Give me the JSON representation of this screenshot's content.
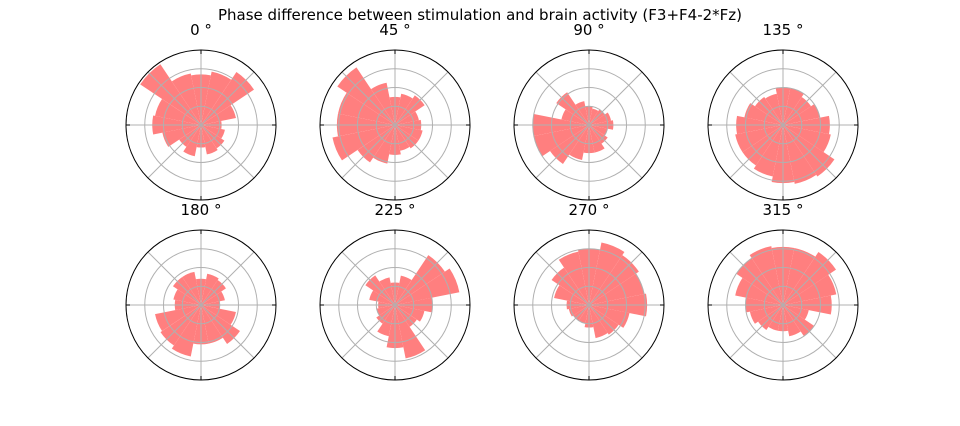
{
  "title": "Phase difference between stimulation and brain activity (F3+F4-2*Fz)",
  "chart_data": {
    "type": "polar-bar",
    "title": "Phase difference between stimulation and brain activity (F3+F4-2*Fz)",
    "bin_count": 16,
    "bin_centers_deg": [
      0,
      22.5,
      45,
      67.5,
      90,
      112.5,
      135,
      157.5,
      180,
      202.5,
      225,
      247.5,
      270,
      292.5,
      315,
      337.5
    ],
    "radial_grid_levels": [
      1,
      2,
      3,
      4
    ],
    "rlim": [
      0,
      4
    ],
    "grid": true,
    "bar_color": "#ff7f7f",
    "grid_color": "#b0b0b0",
    "panels": [
      {
        "title": "0 °",
        "values": [
          1.1,
          1.9,
          3.4,
          2.9,
          2.7,
          2.8,
          3.9,
          2.5,
          2.6,
          2.1,
          1.4,
          1.7,
          1.2,
          1.6,
          1.5,
          1.3
        ]
      },
      {
        "title": "45 °",
        "values": [
          1.4,
          1.3,
          1.9,
          1.7,
          1.5,
          2.3,
          3.7,
          3.1,
          3.1,
          3.4,
          2.4,
          2.1,
          1.6,
          1.4,
          1.5,
          1.5
        ]
      },
      {
        "title": "90 °",
        "values": [
          1.3,
          1.2,
          1.0,
          0.9,
          1.0,
          1.3,
          2.1,
          1.5,
          3.0,
          3.0,
          2.5,
          1.9,
          1.5,
          1.5,
          1.2,
          1.0
        ]
      },
      {
        "title": "135 °",
        "values": [
          2.5,
          2.0,
          1.8,
          2.0,
          2.0,
          1.7,
          1.8,
          2.1,
          2.5,
          2.6,
          2.6,
          2.8,
          3.1,
          3.2,
          3.3,
          2.6
        ]
      },
      {
        "title": "180 °",
        "values": [
          1.0,
          1.3,
          1.6,
          1.7,
          1.4,
          1.8,
          1.8,
          1.5,
          1.4,
          2.5,
          2.6,
          2.8,
          2.1,
          2.1,
          2.5,
          1.9
        ]
      },
      {
        "title": "225 °",
        "values": [
          2.0,
          3.5,
          3.2,
          1.6,
          1.2,
          1.5,
          1.9,
          1.4,
          0.9,
          1.0,
          1.2,
          1.7,
          2.3,
          2.9,
          1.4,
          1.6
        ]
      },
      {
        "title": "270 °",
        "values": [
          3.1,
          3.0,
          3.2,
          3.4,
          3.0,
          2.9,
          2.4,
          1.9,
          1.2,
          1.1,
          1.0,
          1.0,
          1.2,
          1.8,
          1.9,
          2.2
        ]
      },
      {
        "title": "315 °",
        "values": [
          2.6,
          2.9,
          3.4,
          3.1,
          3.1,
          3.2,
          3.0,
          2.6,
          2.0,
          1.8,
          1.6,
          1.4,
          1.4,
          1.7,
          2.0,
          1.4
        ]
      }
    ]
  }
}
